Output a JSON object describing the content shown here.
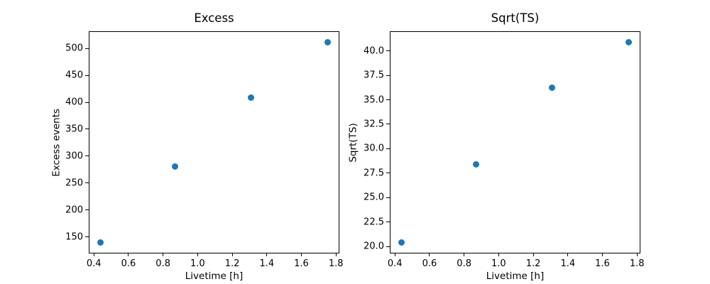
{
  "figure": {
    "background": "#ffffff",
    "text_color": "#000000"
  },
  "chart_data": [
    {
      "type": "scatter",
      "title": "Excess",
      "xlabel": "Livetime [h]",
      "ylabel": "Excess events",
      "x": [
        0.44,
        0.87,
        1.31,
        1.75
      ],
      "y": [
        139,
        280,
        408,
        512
      ],
      "xlim": [
        0.3745,
        1.8155
      ],
      "ylim": [
        120.35,
        530.65
      ],
      "xticks": [
        0.4,
        0.6,
        0.8,
        1.0,
        1.2,
        1.4,
        1.6,
        1.8
      ],
      "xtick_labels": [
        "0.4",
        "0.6",
        "0.8",
        "1.0",
        "1.2",
        "1.4",
        "1.6",
        "1.8"
      ],
      "yticks": [
        150,
        200,
        250,
        300,
        350,
        400,
        450,
        500
      ],
      "ytick_labels": [
        "150",
        "200",
        "250",
        "300",
        "350",
        "400",
        "450",
        "500"
      ],
      "marker": "circle",
      "marker_color": "#1f77b4",
      "grid": false,
      "legend": null
    },
    {
      "type": "scatter",
      "title": "Sqrt(TS)",
      "xlabel": "Livetime [h]",
      "ylabel": "Sqrt(TS)",
      "x": [
        0.44,
        0.87,
        1.31,
        1.75
      ],
      "y": [
        20.4,
        28.4,
        36.2,
        40.9
      ],
      "xlim": [
        0.3745,
        1.8155
      ],
      "ylim": [
        19.375,
        41.925
      ],
      "xticks": [
        0.4,
        0.6,
        0.8,
        1.0,
        1.2,
        1.4,
        1.6,
        1.8
      ],
      "xtick_labels": [
        "0.4",
        "0.6",
        "0.8",
        "1.0",
        "1.2",
        "1.4",
        "1.6",
        "1.8"
      ],
      "yticks": [
        20.0,
        22.5,
        25.0,
        27.5,
        30.0,
        32.5,
        35.0,
        37.5,
        40.0
      ],
      "ytick_labels": [
        "20.0",
        "22.5",
        "25.0",
        "27.5",
        "30.0",
        "32.5",
        "35.0",
        "37.5",
        "40.0"
      ],
      "marker": "circle",
      "marker_color": "#1f77b4",
      "grid": false,
      "legend": null
    }
  ]
}
